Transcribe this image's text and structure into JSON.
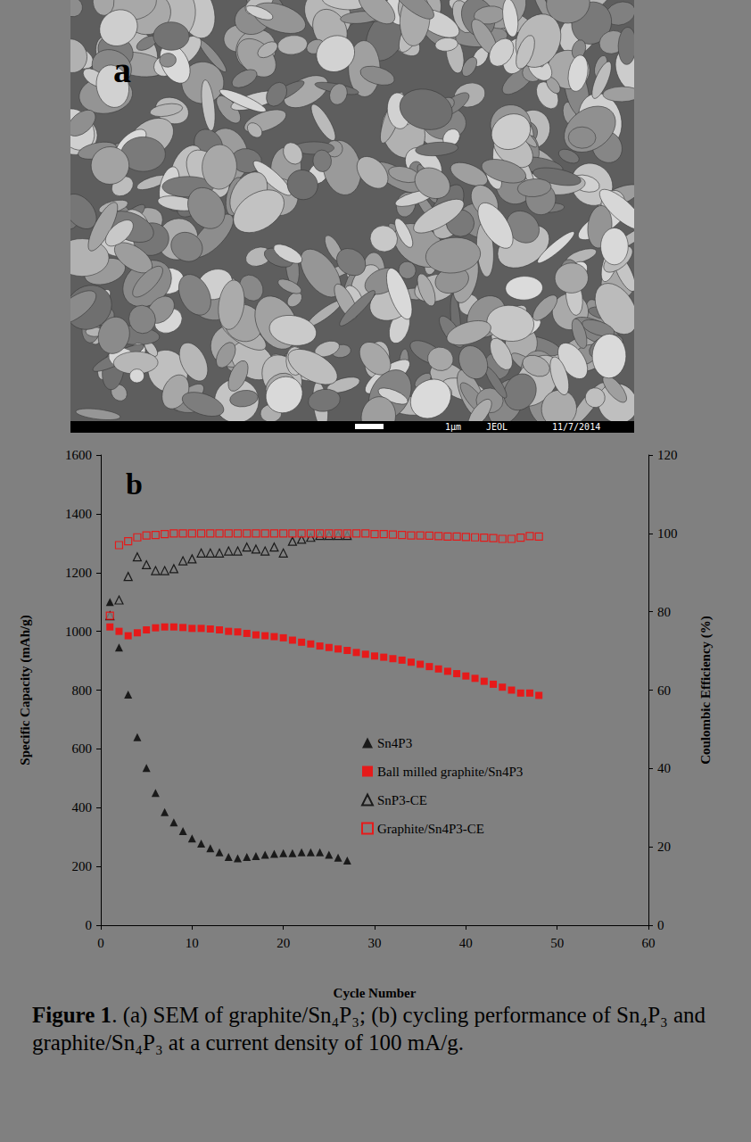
{
  "panel_a": {
    "label": "a",
    "scale_bar": "1µm",
    "instrument": "JEOL",
    "date": "11/7/2014"
  },
  "chart_data": {
    "type": "scatter",
    "panel_label": "b",
    "xlabel": "Cycle Number",
    "ylabel": "Specific Capacity (mAh/g)",
    "y2label": "Coulombic Efficiency (%)",
    "xlim": [
      0,
      60
    ],
    "xticks": [
      0,
      10,
      20,
      30,
      40,
      50,
      60
    ],
    "ylim": [
      0,
      1600
    ],
    "yticks": [
      0,
      200,
      400,
      600,
      800,
      1000,
      1200,
      1400,
      1600
    ],
    "y2lim": [
      0,
      120
    ],
    "y2ticks": [
      0,
      20,
      40,
      60,
      80,
      100,
      120
    ],
    "grid": false,
    "legend": "center",
    "x": [
      1,
      2,
      3,
      4,
      5,
      6,
      7,
      8,
      9,
      10,
      11,
      12,
      13,
      14,
      15,
      16,
      17,
      18,
      19,
      20,
      21,
      22,
      23,
      24,
      25,
      26,
      27,
      28,
      29,
      30,
      31,
      32,
      33,
      34,
      35,
      36,
      37,
      38,
      39,
      40,
      41,
      42,
      43,
      44,
      45,
      46,
      47,
      48
    ],
    "series": [
      {
        "name": "Sn4P3",
        "color": "#000000",
        "marker": "triangle",
        "axis": "y",
        "values": [
          1100,
          945,
          785,
          640,
          535,
          450,
          385,
          350,
          320,
          295,
          278,
          262,
          248,
          232,
          228,
          232,
          235,
          240,
          243,
          245,
          245,
          248,
          248,
          248,
          240,
          230,
          220,
          null,
          null,
          null,
          null,
          null,
          null,
          null,
          null,
          null,
          null,
          null,
          null,
          null,
          null,
          null,
          null,
          null,
          null,
          null,
          null,
          null
        ]
      },
      {
        "name": "Ball milled graphite/Sn4P3",
        "color": "#ff0000",
        "marker": "square",
        "axis": "y",
        "values": [
          1015,
          1000,
          985,
          995,
          1005,
          1012,
          1015,
          1015,
          1013,
          1010,
          1010,
          1008,
          1005,
          1000,
          998,
          993,
          988,
          985,
          982,
          978,
          970,
          963,
          957,
          950,
          945,
          940,
          935,
          928,
          922,
          916,
          912,
          907,
          902,
          895,
          888,
          880,
          872,
          864,
          856,
          848,
          840,
          830,
          820,
          810,
          800,
          790,
          790,
          782
        ]
      },
      {
        "name": "SnP3-CE",
        "color": "#000000",
        "marker": "triangle-open",
        "axis": "y2",
        "values": [
          79,
          83,
          89,
          94,
          92,
          90.5,
          90.5,
          91,
          93,
          93.5,
          95,
          95,
          95,
          95.5,
          95.5,
          96.5,
          96,
          95.5,
          96.5,
          95,
          98,
          98.5,
          99,
          99.5,
          99.5,
          99.5,
          99.5,
          null,
          null,
          null,
          null,
          null,
          null,
          null,
          null,
          null,
          null,
          null,
          null,
          null,
          null,
          null,
          null,
          null,
          null,
          null,
          null,
          null
        ]
      },
      {
        "name": "Graphite/Sn4P3-CE",
        "color": "#ff0000",
        "marker": "square-open",
        "axis": "y2",
        "values": [
          79,
          97,
          98,
          99,
          99.5,
          99.6,
          99.8,
          100,
          100,
          100,
          100,
          100,
          100,
          100,
          100,
          100,
          100,
          100,
          100,
          100,
          100,
          100,
          100,
          100,
          100,
          100,
          100,
          100,
          100,
          99.8,
          99.8,
          99.7,
          99.6,
          99.5,
          99.5,
          99.4,
          99.3,
          99.2,
          99.2,
          99.1,
          99,
          98.9,
          98.8,
          98.6,
          98.6,
          98.9,
          99.3,
          99.2
        ]
      }
    ]
  },
  "caption": {
    "label": "Figure 1",
    "text": ". (a) SEM of graphite/Sn₄P₃; (b) cycling performance of Sn₄P₃ and graphite/Sn₄P₃ at a current density of 100 mA/g."
  }
}
